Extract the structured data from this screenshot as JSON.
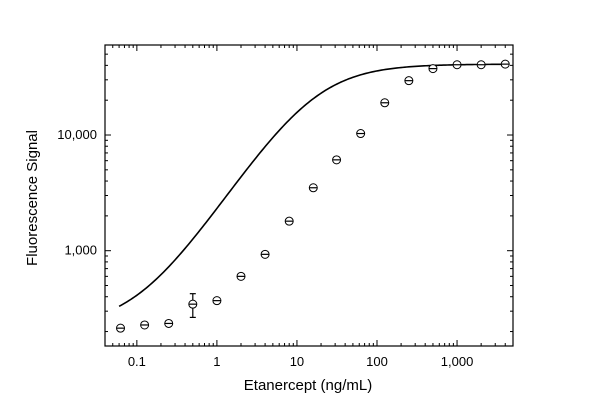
{
  "chart_data": {
    "type": "scatter",
    "xlabel": "Etanercept (ng/mL)",
    "ylabel": "Fluorescence Signal",
    "xscale": "log",
    "yscale": "log",
    "xlim": [
      0.04,
      5000
    ],
    "ylim": [
      150,
      60000
    ],
    "x_ticks": [
      {
        "value": 0.1,
        "label": "0.1"
      },
      {
        "value": 1,
        "label": "1"
      },
      {
        "value": 10,
        "label": "10"
      },
      {
        "value": 100,
        "label": "100"
      },
      {
        "value": 1000,
        "label": "1,000"
      }
    ],
    "y_ticks": [
      {
        "value": 1000,
        "label": "1,000"
      },
      {
        "value": 10000,
        "label": "10,000"
      }
    ],
    "fit_curve": {
      "model": "4PL",
      "bottom": 215,
      "top": 41000,
      "ec50": 16,
      "hill": 1.05
    },
    "points": [
      {
        "x": 0.0625,
        "y": 214,
        "err": 8
      },
      {
        "x": 0.125,
        "y": 228,
        "err": 8
      },
      {
        "x": 0.25,
        "y": 235,
        "err": 10
      },
      {
        "x": 0.5,
        "y": 345,
        "err": 80
      },
      {
        "x": 1,
        "y": 370,
        "err": 15
      },
      {
        "x": 2,
        "y": 600,
        "err": 25
      },
      {
        "x": 4,
        "y": 930,
        "err": 35
      },
      {
        "x": 8,
        "y": 1800,
        "err": 80
      },
      {
        "x": 16,
        "y": 3500,
        "err": 150
      },
      {
        "x": 31.25,
        "y": 6100,
        "err": 250
      },
      {
        "x": 62.5,
        "y": 10300,
        "err": 400
      },
      {
        "x": 125,
        "y": 19000,
        "err": 600
      },
      {
        "x": 250,
        "y": 29500,
        "err": 900
      },
      {
        "x": 500,
        "y": 37500,
        "err": 1000
      },
      {
        "x": 1000,
        "y": 40500,
        "err": 1000
      },
      {
        "x": 2000,
        "y": 40500,
        "err": 1000
      },
      {
        "x": 4000,
        "y": 41000,
        "err": 1000
      }
    ],
    "grid": false,
    "legend": "none"
  }
}
